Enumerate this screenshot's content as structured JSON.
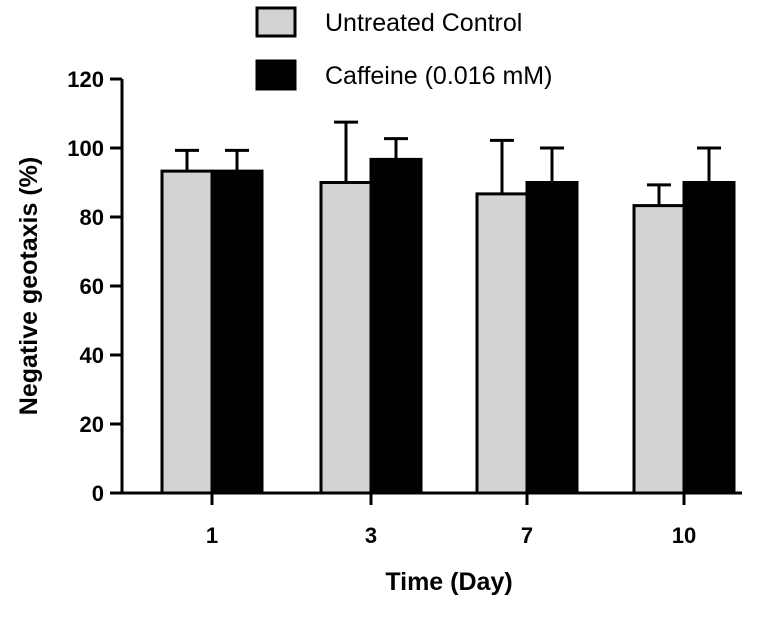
{
  "chart_data": {
    "type": "bar",
    "xlabel": "Time (Day)",
    "ylabel": "Negative geotaxis (%)",
    "categories": [
      "1",
      "3",
      "7",
      "10"
    ],
    "ylim": [
      0,
      120
    ],
    "yticks": [
      "0",
      "20",
      "40",
      "60",
      "80",
      "100",
      "120"
    ],
    "series": [
      {
        "name": "Untreated Control",
        "color": "#d3d3d3",
        "values": [
          93.3,
          90,
          86.7,
          83.3
        ],
        "error": [
          6,
          17.5,
          15.5,
          6
        ]
      },
      {
        "name": "Caffeine (0.016 mM)",
        "color": "#000000",
        "values": [
          93.3,
          96.7,
          90,
          90
        ],
        "error": [
          6,
          6,
          10,
          10
        ]
      }
    ],
    "grid": false,
    "legend_position": "top"
  }
}
